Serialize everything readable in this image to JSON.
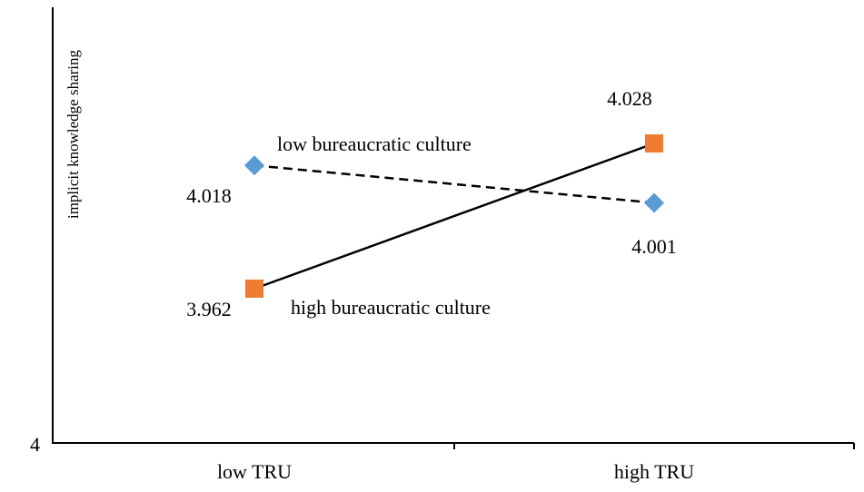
{
  "chart_data": {
    "type": "line",
    "title": "",
    "xlabel": "",
    "ylabel": "implicit knowledge sharing",
    "categories": [
      "low TRU",
      "high TRU"
    ],
    "y_tick_labels": [
      "4"
    ],
    "grid": false,
    "legend": "none",
    "series": [
      {
        "name": "low bureaucratic culture",
        "values": [
          4.018,
          4.001
        ],
        "value_labels": [
          "4.018",
          "4.001"
        ],
        "line_style": "dashed",
        "marker": "diamond",
        "color": "#5b9bd5"
      },
      {
        "name": "high bureaucratic culture",
        "values": [
          3.962,
          4.028
        ],
        "value_labels": [
          "3.962",
          "4.028"
        ],
        "line_style": "solid",
        "marker": "square",
        "color": "#ed7d31"
      }
    ],
    "line_color": "#000000",
    "axis_color": "#000000"
  }
}
